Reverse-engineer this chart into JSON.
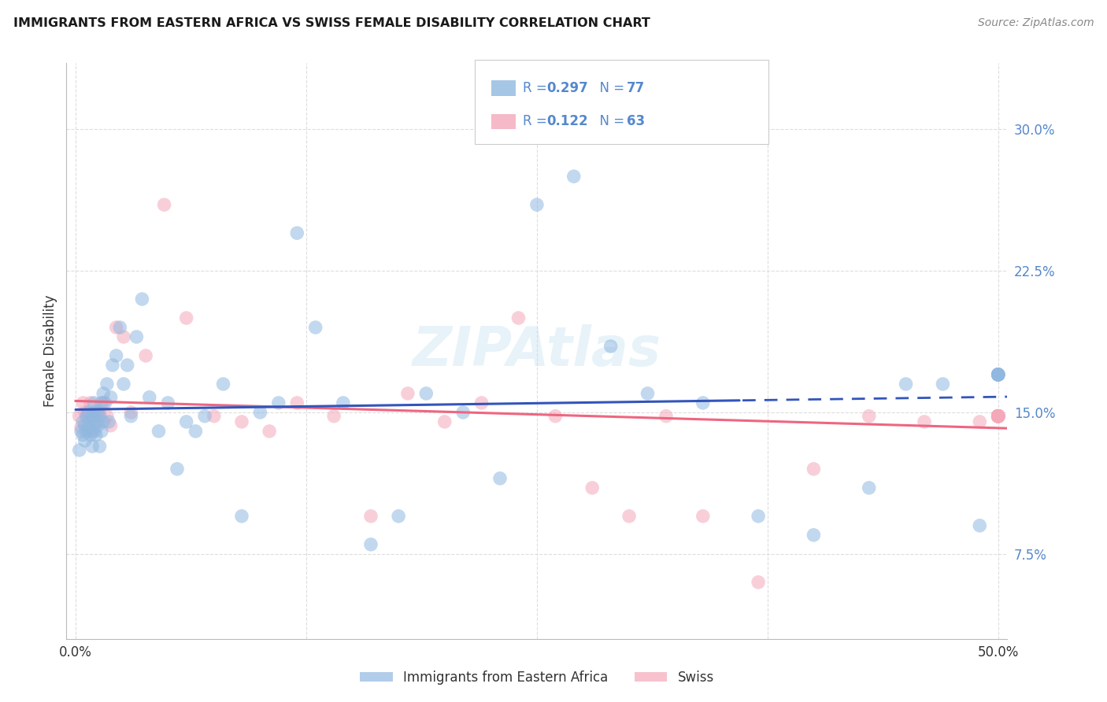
{
  "title": "IMMIGRANTS FROM EASTERN AFRICA VS SWISS FEMALE DISABILITY CORRELATION CHART",
  "source": "Source: ZipAtlas.com",
  "ylabel": "Female Disability",
  "xlim": [
    -0.005,
    0.505
  ],
  "ylim": [
    0.03,
    0.335
  ],
  "yticks": [
    0.075,
    0.15,
    0.225,
    0.3
  ],
  "ytick_labels": [
    "7.5%",
    "15.0%",
    "22.5%",
    "30.0%"
  ],
  "xticks": [
    0.0,
    0.125,
    0.25,
    0.375,
    0.5
  ],
  "xtick_labels": [
    "0.0%",
    "",
    "",
    "",
    "50.0%"
  ],
  "legend_labels": [
    "Immigrants from Eastern Africa",
    "Swiss"
  ],
  "blue_R": 0.297,
  "blue_N": 77,
  "pink_R": 0.122,
  "pink_N": 63,
  "blue_color": "#90B8E0",
  "pink_color": "#F4A8BA",
  "trend_blue": "#3355BB",
  "trend_pink": "#EE6680",
  "tick_color": "#5588CC",
  "blue_x": [
    0.002,
    0.003,
    0.004,
    0.004,
    0.005,
    0.005,
    0.006,
    0.006,
    0.007,
    0.007,
    0.008,
    0.008,
    0.009,
    0.009,
    0.01,
    0.01,
    0.01,
    0.011,
    0.011,
    0.012,
    0.012,
    0.013,
    0.013,
    0.014,
    0.014,
    0.015,
    0.015,
    0.016,
    0.017,
    0.018,
    0.019,
    0.02,
    0.022,
    0.024,
    0.026,
    0.028,
    0.03,
    0.033,
    0.036,
    0.04,
    0.045,
    0.05,
    0.055,
    0.06,
    0.065,
    0.07,
    0.08,
    0.09,
    0.1,
    0.11,
    0.12,
    0.13,
    0.145,
    0.16,
    0.175,
    0.19,
    0.21,
    0.23,
    0.25,
    0.27,
    0.29,
    0.31,
    0.34,
    0.37,
    0.4,
    0.43,
    0.45,
    0.47,
    0.49,
    0.5,
    0.5,
    0.5,
    0.5,
    0.5,
    0.5,
    0.5,
    0.5
  ],
  "blue_y": [
    0.13,
    0.14,
    0.138,
    0.145,
    0.135,
    0.143,
    0.14,
    0.148,
    0.142,
    0.15,
    0.138,
    0.145,
    0.148,
    0.132,
    0.14,
    0.15,
    0.155,
    0.145,
    0.138,
    0.15,
    0.143,
    0.148,
    0.132,
    0.155,
    0.14,
    0.16,
    0.145,
    0.155,
    0.165,
    0.145,
    0.158,
    0.175,
    0.18,
    0.195,
    0.165,
    0.175,
    0.148,
    0.19,
    0.21,
    0.158,
    0.14,
    0.155,
    0.12,
    0.145,
    0.14,
    0.148,
    0.165,
    0.095,
    0.15,
    0.155,
    0.245,
    0.195,
    0.155,
    0.08,
    0.095,
    0.16,
    0.15,
    0.115,
    0.26,
    0.275,
    0.185,
    0.16,
    0.155,
    0.095,
    0.085,
    0.11,
    0.165,
    0.165,
    0.09,
    0.17,
    0.17,
    0.17,
    0.17,
    0.17,
    0.17,
    0.17,
    0.17
  ],
  "pink_x": [
    0.002,
    0.003,
    0.004,
    0.005,
    0.006,
    0.007,
    0.008,
    0.009,
    0.01,
    0.011,
    0.012,
    0.013,
    0.015,
    0.017,
    0.019,
    0.022,
    0.026,
    0.03,
    0.038,
    0.048,
    0.06,
    0.075,
    0.09,
    0.105,
    0.12,
    0.14,
    0.16,
    0.18,
    0.2,
    0.22,
    0.24,
    0.26,
    0.28,
    0.3,
    0.32,
    0.34,
    0.37,
    0.4,
    0.43,
    0.46,
    0.49,
    0.5,
    0.5,
    0.5,
    0.5,
    0.5,
    0.5,
    0.5,
    0.5,
    0.5,
    0.5,
    0.5,
    0.5,
    0.5,
    0.5,
    0.5,
    0.5,
    0.5,
    0.5,
    0.5,
    0.5,
    0.5,
    0.5
  ],
  "pink_y": [
    0.148,
    0.142,
    0.155,
    0.15,
    0.148,
    0.143,
    0.155,
    0.14,
    0.148,
    0.15,
    0.145,
    0.15,
    0.155,
    0.148,
    0.143,
    0.195,
    0.19,
    0.15,
    0.18,
    0.26,
    0.2,
    0.148,
    0.145,
    0.14,
    0.155,
    0.148,
    0.095,
    0.16,
    0.145,
    0.155,
    0.2,
    0.148,
    0.11,
    0.095,
    0.148,
    0.095,
    0.06,
    0.12,
    0.148,
    0.145,
    0.145,
    0.148,
    0.148,
    0.148,
    0.148,
    0.148,
    0.148,
    0.148,
    0.148,
    0.148,
    0.148,
    0.148,
    0.148,
    0.148,
    0.148,
    0.148,
    0.148,
    0.148,
    0.148,
    0.148,
    0.148,
    0.148,
    0.148
  ]
}
